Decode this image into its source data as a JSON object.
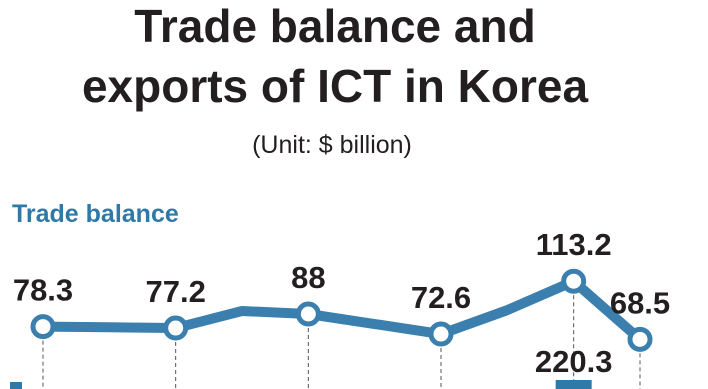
{
  "chart_data": {
    "type": "line",
    "title": [
      "Trade balance and",
      "exports of ICT in Korea"
    ],
    "subtitle": "(Unit: $ billion)",
    "categories": [
      null,
      null,
      null,
      null,
      null,
      null,
      null,
      null,
      null,
      null
    ],
    "series": [
      {
        "name": "Trade balance",
        "color": "#3a7fad",
        "values": [
          78.3,
          77.8,
          77.2,
          90.3,
          88,
          80.3,
          72.6,
          91,
          113.2,
          68.5
        ],
        "value_labels": [
          "78.3",
          null,
          "77.2",
          null,
          "88",
          null,
          "72.6",
          null,
          "113.2",
          "68.5"
        ]
      },
      {
        "name": null,
        "type": "bar",
        "color": "#2f79a8",
        "values": [
          null,
          null,
          null,
          null,
          null,
          null,
          null,
          null,
          220.3,
          null
        ],
        "value_labels": [
          null,
          null,
          null,
          null,
          null,
          null,
          null,
          null,
          "220.3",
          null
        ]
      }
    ],
    "ylim": [
      60,
      120
    ]
  }
}
